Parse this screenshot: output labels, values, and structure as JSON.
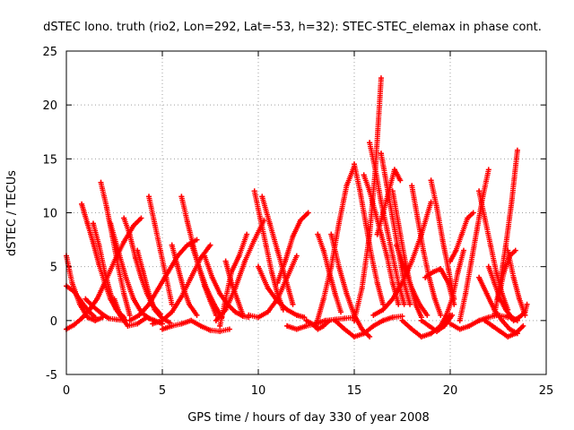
{
  "chart_data": {
    "type": "scatter",
    "title": "dSTEC Iono. truth (rio2, Lon=292, Lat=-53, h=32): STEC-STEC_elemax in phase cont.",
    "xlabel": "GPS time / hours of day 330 of year 2008",
    "ylabel": "dSTEC  / TECUs",
    "xlim": [
      0,
      25
    ],
    "ylim": [
      -5,
      25
    ],
    "x_ticks": [
      0,
      5,
      10,
      15,
      20,
      25
    ],
    "y_ticks": [
      -5,
      0,
      5,
      10,
      15,
      20,
      25
    ],
    "x_tick_labels": [
      "0",
      "5",
      "10",
      "15",
      "20",
      "25"
    ],
    "y_tick_labels": [
      "-5",
      "0",
      "5",
      "10",
      "15",
      "20",
      "25"
    ],
    "grid": true,
    "marker": "+",
    "color": "#ff0000",
    "series": [
      {
        "x": [
          0.0,
          0.3,
          0.7,
          1.1,
          1.5,
          1.9
        ],
        "y": [
          6.0,
          3.5,
          1.5,
          0.3,
          0.0,
          0.3
        ]
      },
      {
        "x": [
          0.0,
          0.4,
          0.8,
          1.2,
          1.5
        ],
        "y": [
          3.2,
          2.7,
          1.7,
          0.8,
          0.3
        ]
      },
      {
        "x": [
          0.0,
          0.4,
          0.8,
          1.2,
          1.6,
          2.0,
          2.5,
          3.0,
          3.5,
          3.9
        ],
        "y": [
          -0.8,
          -0.4,
          0.2,
          1.0,
          2.0,
          3.5,
          5.5,
          7.3,
          8.8,
          9.5
        ]
      },
      {
        "x": [
          0.8,
          1.1,
          1.4,
          1.7,
          2.0,
          2.3,
          2.6,
          2.9,
          3.1
        ],
        "y": [
          10.8,
          9.0,
          7.2,
          5.2,
          3.5,
          2.0,
          1.0,
          0.3,
          0.0
        ]
      },
      {
        "x": [
          1.0,
          1.4,
          1.8,
          2.2,
          2.6,
          3.0
        ],
        "y": [
          2.0,
          1.3,
          0.7,
          0.2,
          0.1,
          0.0
        ]
      },
      {
        "x": [
          1.8,
          2.1,
          2.4,
          2.7,
          3.0,
          3.3
        ],
        "y": [
          12.8,
          10.5,
          7.8,
          5.0,
          2.5,
          0.5
        ]
      },
      {
        "x": [
          1.4,
          1.7,
          2.0,
          2.3,
          2.6,
          3.0
        ],
        "y": [
          9.0,
          7.0,
          4.5,
          2.5,
          1.0,
          0.3
        ]
      },
      {
        "x": [
          2.3,
          2.7,
          3.1,
          3.5,
          3.9,
          4.3
        ],
        "y": [
          9.0,
          6.5,
          4.0,
          2.0,
          0.8,
          0.2
        ]
      },
      {
        "x": [
          3.0,
          3.3,
          3.6,
          3.9,
          4.2,
          4.5,
          4.9
        ],
        "y": [
          9.5,
          8.0,
          5.8,
          4.0,
          2.5,
          1.4,
          0.6
        ]
      },
      {
        "x": [
          2.5,
          2.8,
          3.2,
          3.7,
          4.2,
          4.6,
          5.0
        ],
        "y": [
          2.0,
          0.5,
          -0.5,
          -0.3,
          0.3,
          0.0,
          -0.3
        ]
      },
      {
        "x": [
          3.7,
          4.0,
          4.3,
          4.6,
          5.0,
          5.4
        ],
        "y": [
          6.5,
          4.5,
          2.5,
          1.0,
          0.2,
          -0.2
        ]
      },
      {
        "x": [
          4.3,
          4.6,
          4.9,
          5.2,
          5.5
        ],
        "y": [
          11.5,
          9.0,
          6.5,
          4.0,
          1.5
        ]
      },
      {
        "x": [
          3.3,
          3.8,
          4.3,
          4.8,
          5.3,
          5.8,
          6.3,
          6.8
        ],
        "y": [
          0.0,
          0.5,
          1.5,
          3.0,
          4.5,
          6.0,
          7.0,
          7.5
        ]
      },
      {
        "x": [
          4.5,
          5.0,
          5.5,
          6.0,
          6.5,
          7.0,
          7.5
        ],
        "y": [
          -0.3,
          0.0,
          0.8,
          2.2,
          4.0,
          5.8,
          7.0
        ]
      },
      {
        "x": [
          6.0,
          6.3,
          6.6,
          6.9,
          7.2,
          7.5,
          7.8
        ],
        "y": [
          11.5,
          9.2,
          7.0,
          5.0,
          3.2,
          1.8,
          0.5
        ]
      },
      {
        "x": [
          6.5,
          6.9,
          7.3,
          7.7,
          8.1
        ],
        "y": [
          7.2,
          5.0,
          3.0,
          1.5,
          0.3
        ]
      },
      {
        "x": [
          5.0,
          5.5,
          6.0,
          6.5,
          7.0,
          7.5,
          8.0,
          8.5
        ],
        "y": [
          -0.8,
          -0.5,
          -0.3,
          0.0,
          -0.5,
          -0.9,
          -1.0,
          -0.8
        ]
      },
      {
        "x": [
          5.5,
          5.8,
          6.1,
          6.4,
          6.8
        ],
        "y": [
          7.0,
          5.0,
          3.0,
          1.5,
          0.5
        ]
      },
      {
        "x": [
          7.2,
          7.6,
          8.0,
          8.4,
          8.8,
          9.2,
          9.5
        ],
        "y": [
          6.0,
          4.0,
          2.5,
          1.5,
          0.8,
          0.4,
          0.3
        ]
      },
      {
        "x": [
          7.8,
          8.3,
          8.8,
          9.3,
          9.8,
          10.3
        ],
        "y": [
          0.0,
          1.0,
          3.0,
          5.5,
          7.5,
          9.3
        ]
      },
      {
        "x": [
          8.0,
          8.3,
          8.6,
          9.0,
          9.4
        ],
        "y": [
          -0.5,
          2.0,
          4.5,
          6.0,
          8.0
        ]
      },
      {
        "x": [
          8.3,
          8.6,
          8.9,
          9.2
        ],
        "y": [
          5.5,
          3.5,
          2.0,
          0.5
        ]
      },
      {
        "x": [
          9.8,
          10.1,
          10.4,
          10.7,
          11.0,
          11.3
        ],
        "y": [
          12.0,
          9.5,
          7.0,
          4.5,
          2.5,
          1.0
        ]
      },
      {
        "x": [
          10.2,
          10.6,
          11.0,
          11.4,
          11.8
        ],
        "y": [
          11.5,
          9.0,
          6.5,
          4.0,
          1.5
        ]
      },
      {
        "x": [
          9.5,
          10.0,
          10.5,
          11.0,
          11.5,
          12.0
        ],
        "y": [
          0.5,
          0.3,
          0.8,
          2.0,
          4.0,
          6.0
        ]
      },
      {
        "x": [
          10.0,
          10.5,
          11.0,
          11.5,
          12.0,
          12.4
        ],
        "y": [
          5.0,
          3.0,
          1.8,
          1.0,
          0.5,
          0.3
        ]
      },
      {
        "x": [
          11.0,
          11.4,
          11.8,
          12.2,
          12.6
        ],
        "y": [
          3.5,
          5.5,
          7.8,
          9.3,
          10.0
        ]
      },
      {
        "x": [
          11.5,
          12.0,
          12.5,
          13.0,
          13.5,
          14.0,
          14.5,
          15.0
        ],
        "y": [
          -0.5,
          -0.8,
          -0.5,
          -0.3,
          0.0,
          0.1,
          0.2,
          0.3
        ]
      },
      {
        "x": [
          12.5,
          12.8,
          13.1,
          13.4,
          13.7
        ],
        "y": [
          0.0,
          -0.3,
          -0.8,
          -0.5,
          0.0
        ]
      },
      {
        "x": [
          13.1,
          13.4,
          13.7,
          14.0,
          14.3
        ],
        "y": [
          8.0,
          6.5,
          4.5,
          2.5,
          0.8
        ]
      },
      {
        "x": [
          13.0,
          13.4,
          13.8,
          14.2,
          14.6,
          15.0
        ],
        "y": [
          -0.5,
          2.0,
          5.0,
          9.0,
          12.5,
          14.3
        ]
      },
      {
        "x": [
          13.8,
          14.2,
          14.6,
          15.0,
          15.4,
          15.8
        ],
        "y": [
          8.0,
          5.0,
          2.5,
          0.5,
          -0.8,
          -1.5
        ]
      },
      {
        "x": [
          14.0,
          14.5,
          15.0,
          15.5,
          16.0,
          16.5,
          17.0,
          17.5
        ],
        "y": [
          0.0,
          -0.8,
          -1.5,
          -1.2,
          -0.5,
          0.0,
          0.3,
          0.4
        ]
      },
      {
        "x": [
          15.0,
          15.3,
          15.6,
          15.9,
          16.2,
          16.5
        ],
        "y": [
          14.5,
          12.0,
          9.0,
          6.0,
          3.5,
          1.5
        ]
      },
      {
        "x": [
          15.5,
          15.8,
          16.1,
          16.4,
          16.7,
          17.0,
          17.3
        ],
        "y": [
          13.5,
          12.0,
          10.0,
          8.0,
          6.0,
          3.5,
          1.5
        ]
      },
      {
        "x": [
          15.0,
          15.4,
          15.8,
          16.1,
          16.4
        ],
        "y": [
          0.0,
          3.0,
          8.0,
          14.0,
          22.5
        ]
      },
      {
        "x": [
          15.8,
          16.1,
          16.4,
          16.7,
          17.0,
          17.3,
          17.6
        ],
        "y": [
          16.5,
          14.0,
          11.0,
          8.5,
          6.0,
          3.5,
          1.5
        ]
      },
      {
        "x": [
          16.4,
          16.7,
          17.0,
          17.3,
          17.6,
          17.9
        ],
        "y": [
          15.5,
          12.5,
          9.5,
          6.5,
          3.5,
          1.5
        ]
      },
      {
        "x": [
          16.2,
          16.5,
          16.8,
          17.1,
          17.4
        ],
        "y": [
          8.0,
          10.0,
          12.0,
          14.0,
          13.0
        ]
      },
      {
        "x": [
          16.0,
          16.5,
          17.0,
          17.5,
          18.0,
          18.5,
          19.0
        ],
        "y": [
          0.5,
          1.0,
          2.0,
          3.5,
          5.5,
          8.0,
          11.0
        ]
      },
      {
        "x": [
          17.0,
          17.3,
          17.6,
          17.9,
          18.2,
          18.5
        ],
        "y": [
          12.0,
          9.0,
          6.0,
          3.5,
          1.5,
          0.3
        ]
      },
      {
        "x": [
          17.2,
          17.6,
          18.0,
          18.4,
          18.8
        ],
        "y": [
          7.0,
          5.0,
          3.0,
          1.5,
          0.5
        ]
      },
      {
        "x": [
          17.5,
          18.0,
          18.5,
          19.0,
          19.5,
          20.0
        ],
        "y": [
          0.0,
          -0.8,
          -1.5,
          -1.2,
          -0.5,
          0.5
        ]
      },
      {
        "x": [
          18.0,
          18.3,
          18.6,
          18.9,
          19.2,
          19.5
        ],
        "y": [
          12.5,
          9.5,
          6.5,
          4.0,
          2.0,
          0.5
        ]
      },
      {
        "x": [
          18.5,
          18.9,
          19.3,
          19.7,
          20.1
        ],
        "y": [
          0.0,
          -0.5,
          -1.0,
          -0.5,
          0.5
        ]
      },
      {
        "x": [
          19.0,
          19.3,
          19.6,
          19.9,
          20.2
        ],
        "y": [
          13.0,
          10.5,
          7.5,
          4.8,
          2.0
        ]
      },
      {
        "x": [
          18.7,
          19.1,
          19.5,
          19.9,
          20.2
        ],
        "y": [
          4.0,
          4.5,
          4.8,
          3.5,
          1.5
        ]
      },
      {
        "x": [
          19.5,
          19.8,
          20.1,
          20.4,
          20.7
        ],
        "y": [
          -0.5,
          0.5,
          2.0,
          4.5,
          6.5
        ]
      },
      {
        "x": [
          20.0,
          20.3,
          20.6,
          20.9,
          21.2
        ],
        "y": [
          5.5,
          6.5,
          8.0,
          9.5,
          10.0
        ]
      },
      {
        "x": [
          20.5,
          20.8,
          21.1,
          21.4,
          21.7,
          22.0
        ],
        "y": [
          0.0,
          2.5,
          5.5,
          8.5,
          11.5,
          14.0
        ]
      },
      {
        "x": [
          20.0,
          20.5,
          21.0,
          21.5,
          22.0,
          22.5,
          23.0
        ],
        "y": [
          -0.3,
          -0.8,
          -0.5,
          0.0,
          0.3,
          0.5,
          0.3
        ]
      },
      {
        "x": [
          21.5,
          21.8,
          22.1,
          22.4,
          22.7,
          23.0
        ],
        "y": [
          12.0,
          9.5,
          7.0,
          4.5,
          2.5,
          1.0
        ]
      },
      {
        "x": [
          21.5,
          21.9,
          22.3,
          22.7,
          23.1,
          23.5
        ],
        "y": [
          4.0,
          2.5,
          1.0,
          0.0,
          -0.8,
          -1.2
        ]
      },
      {
        "x": [
          21.8,
          22.2,
          22.6,
          23.0,
          23.4,
          23.8
        ],
        "y": [
          0.0,
          -0.5,
          -1.0,
          -1.5,
          -1.2,
          -0.5
        ]
      },
      {
        "x": [
          22.0,
          22.3,
          22.6,
          22.9,
          23.2,
          23.5
        ],
        "y": [
          5.0,
          3.5,
          2.0,
          1.0,
          0.3,
          0.0
        ]
      },
      {
        "x": [
          22.5,
          22.8,
          23.1,
          23.4
        ],
        "y": [
          2.0,
          4.5,
          6.0,
          6.5
        ]
      },
      {
        "x": [
          22.3,
          22.6,
          22.9,
          23.2,
          23.5
        ],
        "y": [
          0.5,
          3.5,
          7.0,
          11.0,
          15.8
        ]
      },
      {
        "x": [
          23.0,
          23.3,
          23.6,
          23.9
        ],
        "y": [
          6.5,
          4.0,
          2.0,
          0.5
        ]
      },
      {
        "x": [
          23.0,
          23.3,
          23.6,
          23.9,
          24.0
        ],
        "y": [
          0.5,
          0.0,
          0.3,
          0.8,
          1.5
        ]
      }
    ]
  }
}
